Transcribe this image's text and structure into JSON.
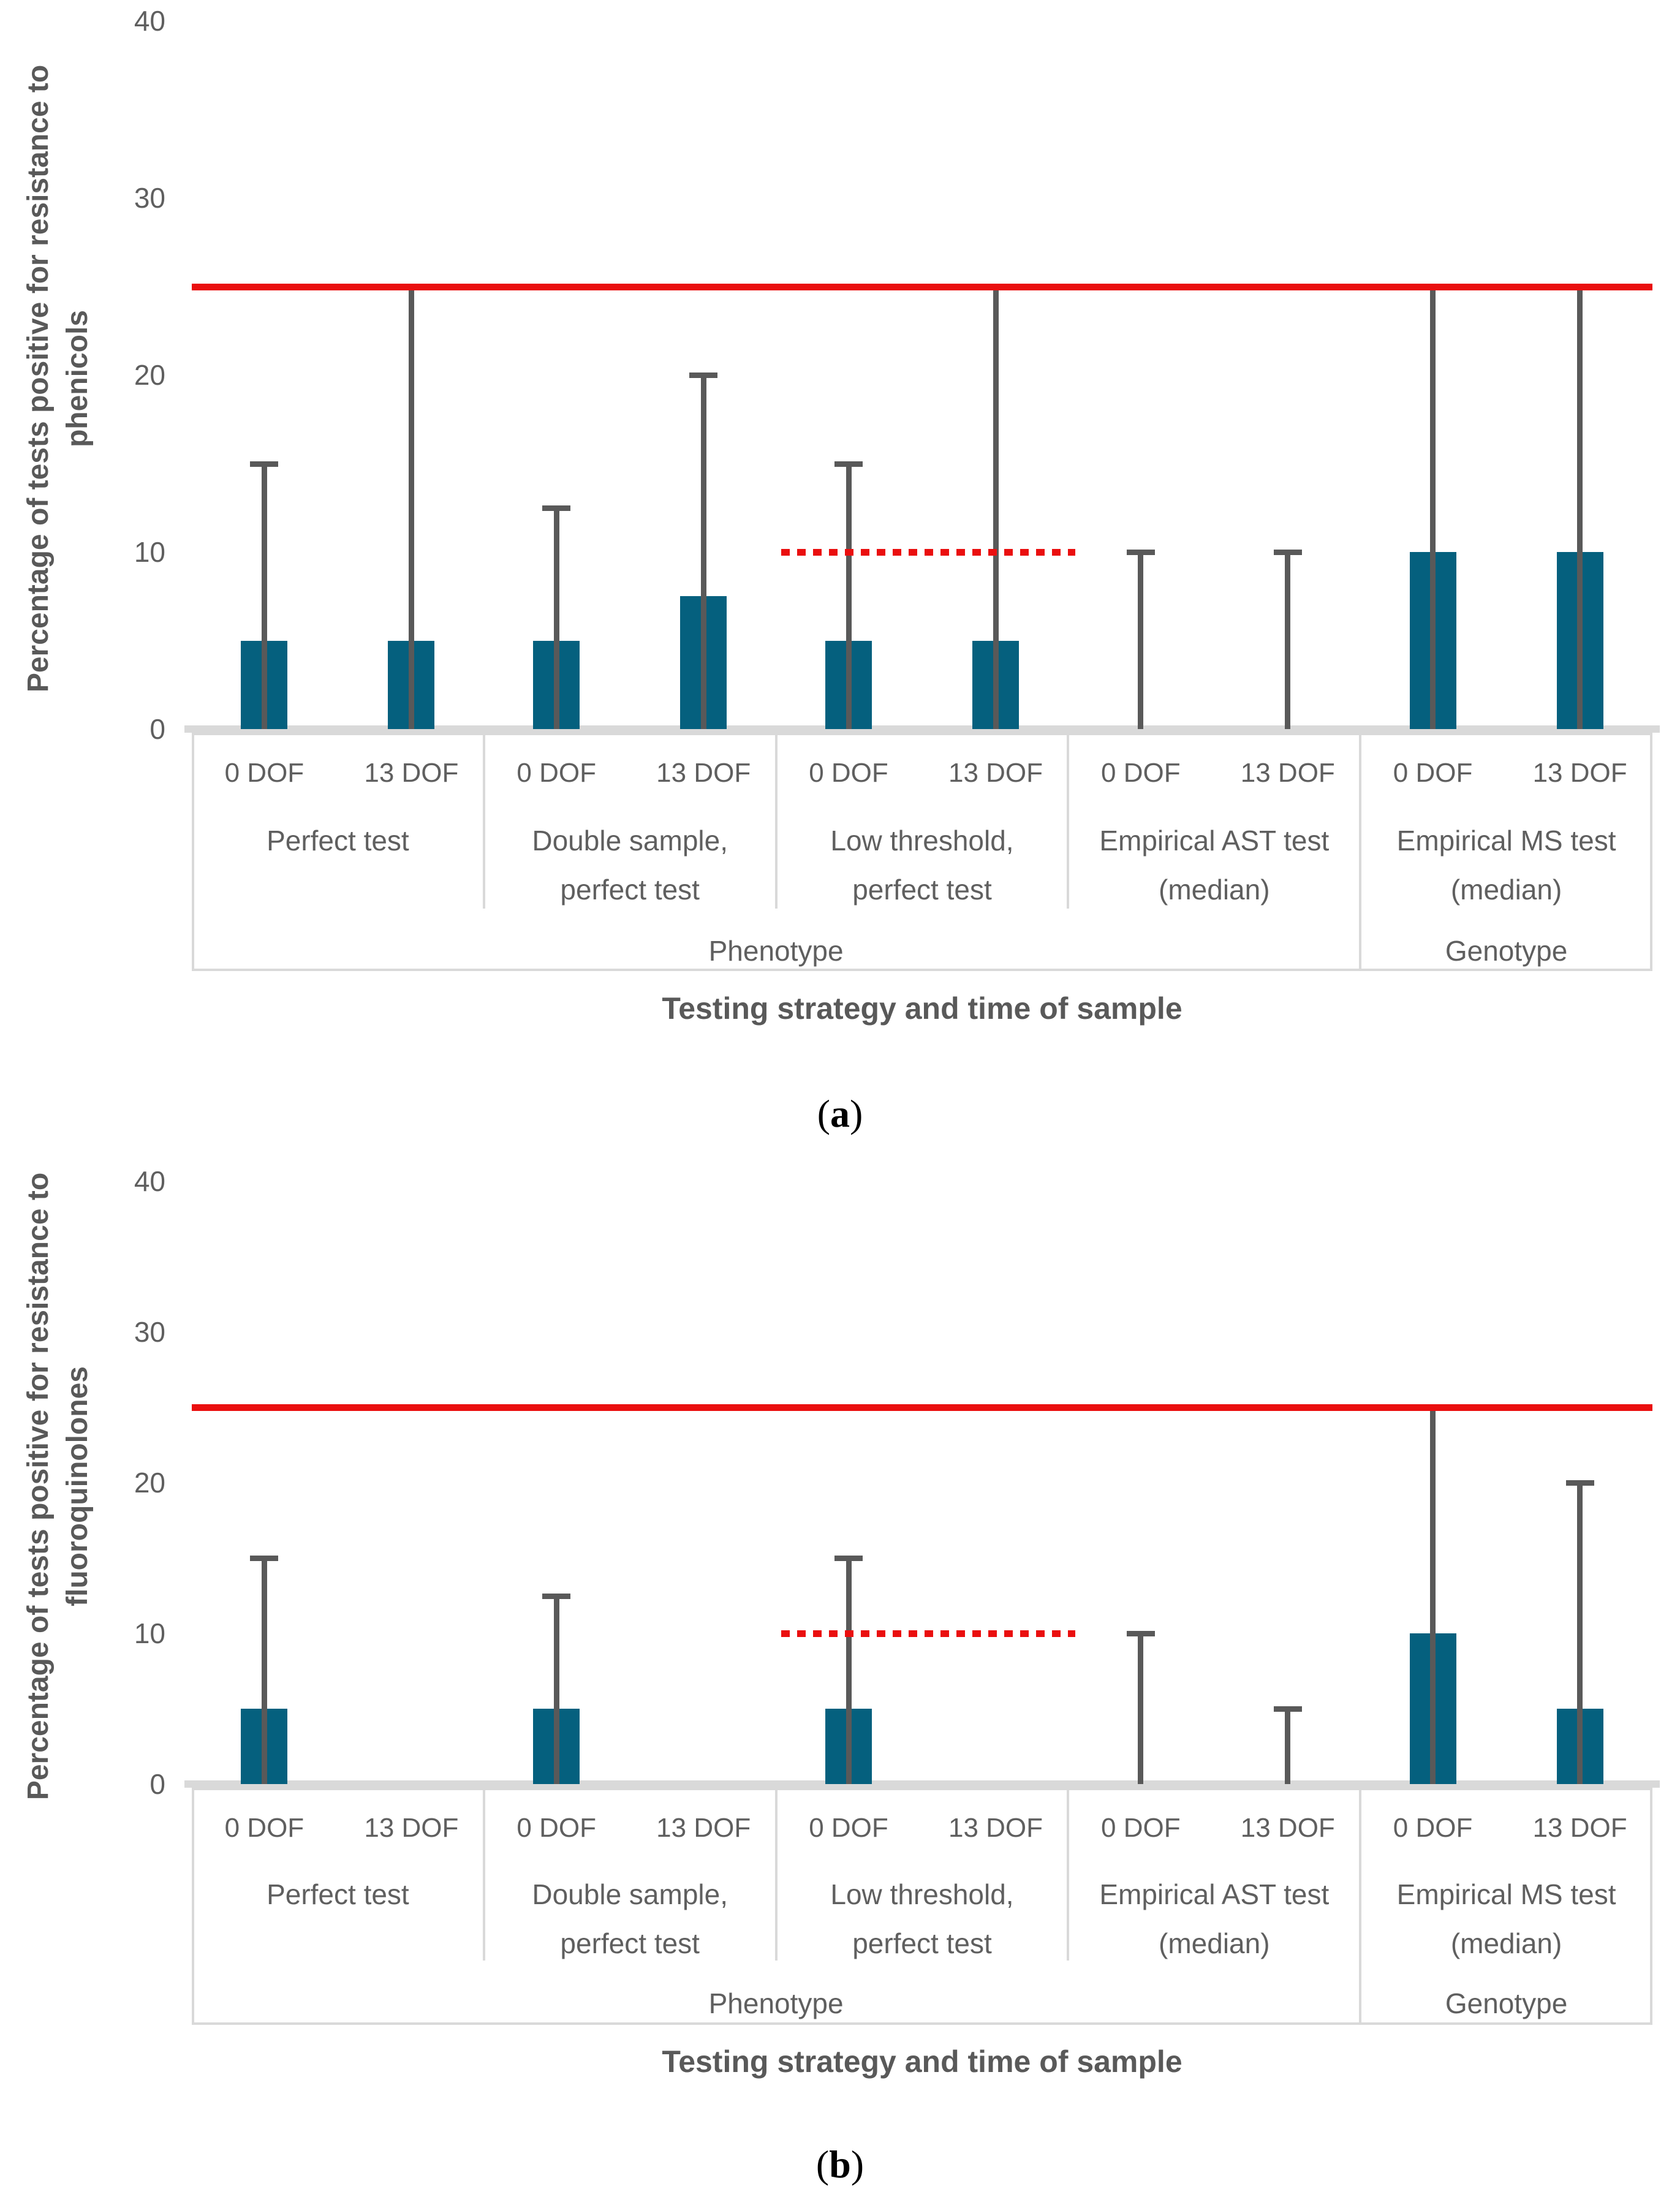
{
  "colors": {
    "bar": "#05607E",
    "error_bar": "#595959",
    "reference_line_red": "#EA0F0F",
    "threshold_dotted_red": "#EA0F0F",
    "axis_text": "#5f5f5f",
    "title_text": "#595959",
    "axis_border": "#D9D9D9"
  },
  "chart_data": [
    {
      "type": "bar",
      "panel": "a",
      "caption_open": "(",
      "caption_letter": "a",
      "caption_close": ")",
      "y_axis_title": "Percentage of tests positive for resistance to phenicols",
      "y_axis_title_lines": [
        "Percentage of tests positive for resistance to",
        "phenicols"
      ],
      "x_axis_title": "Testing strategy and time of sample",
      "ylim": [
        0,
        40
      ],
      "yticks": [
        "0",
        "10",
        "20",
        "30",
        "40"
      ],
      "grid": false,
      "legend": null,
      "reference_line_y": 25,
      "threshold_line": {
        "value": 10,
        "group_index": 2
      },
      "section_row": [
        {
          "label": "Phenotype",
          "span": 4
        },
        {
          "label": "Genotype",
          "span": 1
        }
      ],
      "groups": [
        {
          "label_lines": [
            "Perfect test"
          ],
          "bars": [
            {
              "label": "0 DOF",
              "value": 5,
              "error_high": 15
            },
            {
              "label": "13 DOF",
              "value": 5,
              "error_high": 25
            }
          ]
        },
        {
          "label_lines": [
            "Double sample,",
            "perfect test"
          ],
          "bars": [
            {
              "label": "0 DOF",
              "value": 5,
              "error_high": 12.5
            },
            {
              "label": "13 DOF",
              "value": 7.5,
              "error_high": 20
            }
          ]
        },
        {
          "label_lines": [
            "Low threshold,",
            "perfect test"
          ],
          "bars": [
            {
              "label": "0 DOF",
              "value": 5,
              "error_high": 15
            },
            {
              "label": "13 DOF",
              "value": 5,
              "error_high": 25
            }
          ]
        },
        {
          "label_lines": [
            "Empirical AST test",
            "(median)"
          ],
          "bars": [
            {
              "label": "0 DOF",
              "value": 0,
              "error_high": 10
            },
            {
              "label": "13 DOF",
              "value": 0,
              "error_high": 10
            }
          ]
        },
        {
          "label_lines": [
            "Empirical MS test",
            "(median)"
          ],
          "bars": [
            {
              "label": "0 DOF",
              "value": 10,
              "error_high": 25
            },
            {
              "label": "13 DOF",
              "value": 10,
              "error_high": 25
            }
          ]
        }
      ]
    },
    {
      "type": "bar",
      "panel": "b",
      "caption_open": "(",
      "caption_letter": "b",
      "caption_close": ")",
      "y_axis_title": "Percentage of tests positive for resistance to fluoroquinolones",
      "y_axis_title_lines": [
        "Percentage of tests positive for resistance to",
        "fluoroquinolones"
      ],
      "x_axis_title": "Testing strategy and time of sample",
      "ylim": [
        0,
        40
      ],
      "yticks": [
        "0",
        "10",
        "20",
        "30",
        "40"
      ],
      "grid": false,
      "legend": null,
      "reference_line_y": 25,
      "threshold_line": {
        "value": 10,
        "group_index": 2
      },
      "section_row": [
        {
          "label": "Phenotype",
          "span": 4
        },
        {
          "label": "Genotype",
          "span": 1
        }
      ],
      "groups": [
        {
          "label_lines": [
            "Perfect test"
          ],
          "bars": [
            {
              "label": "0 DOF",
              "value": 5,
              "error_high": 15
            },
            {
              "label": "13 DOF",
              "value": null,
              "error_high": null
            }
          ]
        },
        {
          "label_lines": [
            "Double sample,",
            "perfect test"
          ],
          "bars": [
            {
              "label": "0 DOF",
              "value": 5,
              "error_high": 12.5
            },
            {
              "label": "13 DOF",
              "value": null,
              "error_high": null
            }
          ]
        },
        {
          "label_lines": [
            "Low threshold,",
            "perfect test"
          ],
          "bars": [
            {
              "label": "0 DOF",
              "value": 5,
              "error_high": 15
            },
            {
              "label": "13 DOF",
              "value": null,
              "error_high": null
            }
          ]
        },
        {
          "label_lines": [
            "Empirical AST test",
            "(median)"
          ],
          "bars": [
            {
              "label": "0 DOF",
              "value": 0,
              "error_high": 10
            },
            {
              "label": "13 DOF",
              "value": 0,
              "error_high": 5
            }
          ]
        },
        {
          "label_lines": [
            "Empirical MS test",
            "(median)"
          ],
          "bars": [
            {
              "label": "0 DOF",
              "value": 10,
              "error_high": 25
            },
            {
              "label": "13 DOF",
              "value": 5,
              "error_high": 20
            }
          ]
        }
      ]
    }
  ]
}
